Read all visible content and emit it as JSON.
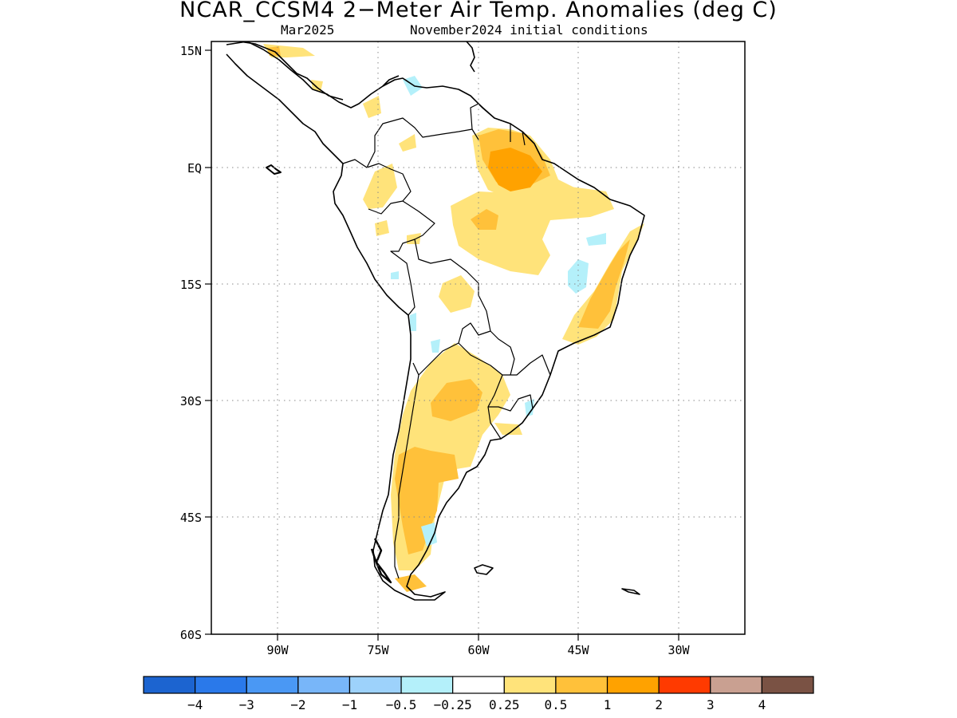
{
  "title": "NCAR_CCSM4 2−Meter Air Temp. Anomalies (deg C)",
  "subtitle_left": "Mar2025",
  "subtitle_right": "November2024 initial conditions",
  "lat_labels": [
    "15N",
    "EQ",
    "15S",
    "30S",
    "45S",
    "60S"
  ],
  "lon_labels": [
    "90W",
    "75W",
    "60W",
    "45W",
    "30W"
  ],
  "colorbar": {
    "colors": [
      "#1c64d0",
      "#2a79ea",
      "#4a98f4",
      "#78b6f9",
      "#9dd2fb",
      "#b4f0fa",
      "#ffffff",
      "#ffe37a",
      "#ffc13a",
      "#ffa200",
      "#ff3a00",
      "#c9a091",
      "#7a5244"
    ],
    "labels": [
      "−4",
      "−3",
      "−2",
      "−1",
      "−0.5",
      "−0.25",
      "0.25",
      "0.5",
      "1",
      "2",
      "3",
      "4"
    ]
  },
  "map_data": {
    "lat_range": [
      -60,
      15
    ],
    "lon_range": [
      -100,
      -20
    ],
    "grid": "dotted",
    "variable": "2-meter air temperature anomaly (deg C)"
  }
}
